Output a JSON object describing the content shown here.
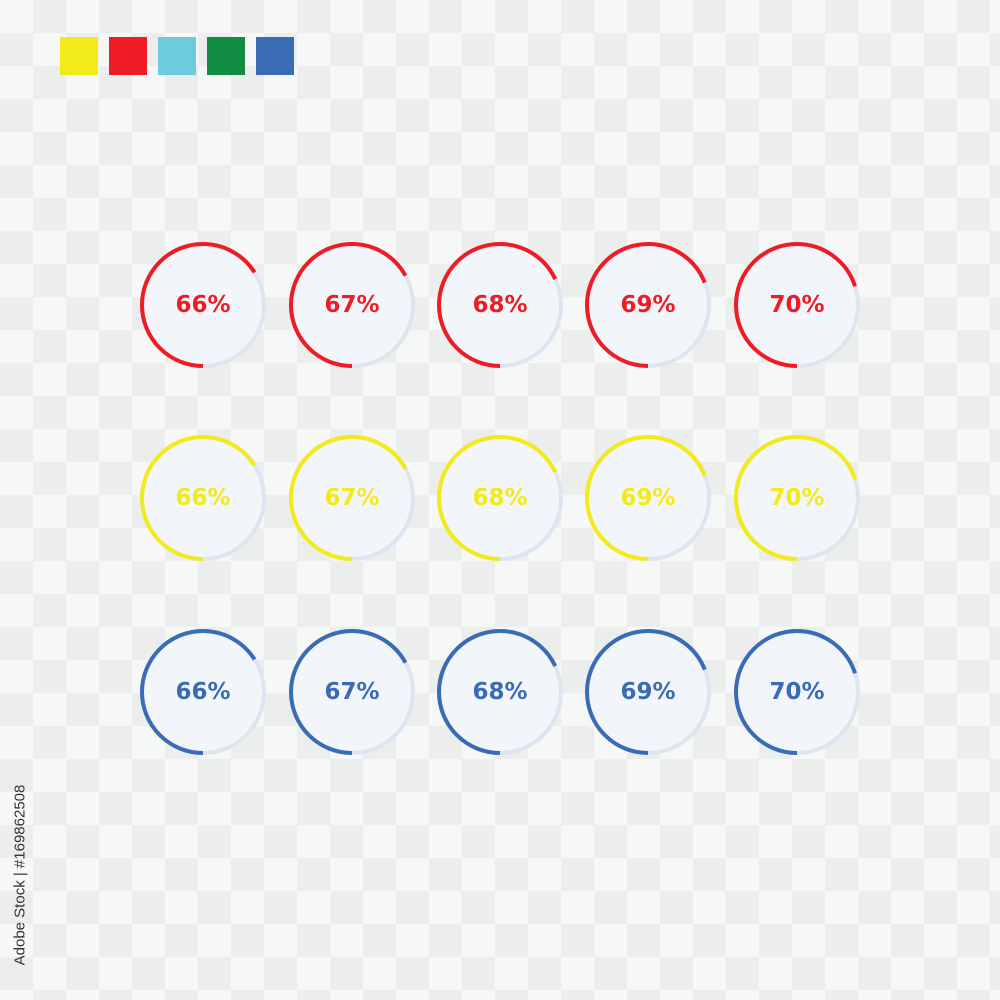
{
  "colors": {
    "red": "#ee1c25",
    "yellow": "#f2ea1b",
    "light_blue": "#6ccbdc",
    "green": "#128c42",
    "blue": "#3a6bb5",
    "track": "#dde6f0",
    "disc": "#f2f6fa"
  },
  "swatches": [
    {
      "name": "yellow",
      "color": "#f2ea1b"
    },
    {
      "name": "red",
      "color": "#ee1c25"
    },
    {
      "name": "light-blue",
      "color": "#6ccbdc"
    },
    {
      "name": "green",
      "color": "#128c42"
    },
    {
      "name": "blue",
      "color": "#3a6bb5"
    }
  ],
  "ring_rows": [
    {
      "color": "#ee1c25",
      "items": [
        {
          "label": "66%",
          "value": 66
        },
        {
          "label": "67%",
          "value": 67
        },
        {
          "label": "68%",
          "value": 68
        },
        {
          "label": "69%",
          "value": 69
        },
        {
          "label": "70%",
          "value": 70
        }
      ]
    },
    {
      "color": "#f2ea1b",
      "items": [
        {
          "label": "66%",
          "value": 66
        },
        {
          "label": "67%",
          "value": 67
        },
        {
          "label": "68%",
          "value": 68
        },
        {
          "label": "69%",
          "value": 69
        },
        {
          "label": "70%",
          "value": 70
        }
      ]
    },
    {
      "color": "#3a6bb5",
      "items": [
        {
          "label": "66%",
          "value": 66
        },
        {
          "label": "67%",
          "value": 67
        },
        {
          "label": "68%",
          "value": 68
        },
        {
          "label": "69%",
          "value": 69
        },
        {
          "label": "70%",
          "value": 70
        }
      ]
    }
  ],
  "credit": "Adobe Stock | #169862508"
}
